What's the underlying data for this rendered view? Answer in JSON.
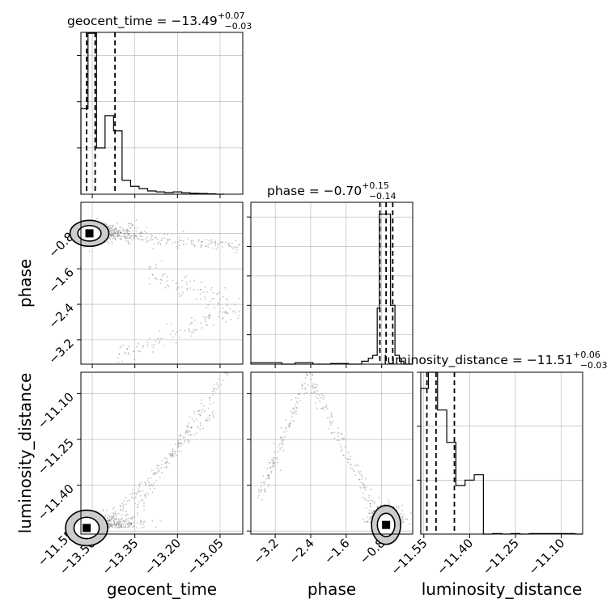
{
  "chart_data": [
    {
      "type": "histogram",
      "panel": "geocent_time-marginal",
      "title": {
        "base": "geocent_time = −13.49",
        "sup": "+0.07",
        "sub": "−0.03"
      },
      "xlim": [
        -13.54,
        -12.97
      ],
      "ylim": [
        0,
        3500
      ],
      "y_ticks": [
        1000,
        2000,
        3000
      ],
      "x_ticks": [
        -13.5,
        -13.35,
        -13.2,
        -13.05
      ],
      "quantile_lines": [
        -13.52,
        -13.49,
        -13.42
      ],
      "bin_edges": [
        -13.54,
        -13.515,
        -13.485,
        -13.455,
        -13.425,
        -13.395,
        -13.365,
        -13.335,
        -13.305,
        -13.275,
        -13.245,
        -13.215,
        -13.185,
        -13.155,
        -13.125,
        -13.095,
        -13.065,
        -13.035
      ],
      "counts": [
        1850,
        3480,
        1000,
        1700,
        1370,
        300,
        170,
        120,
        70,
        50,
        35,
        50,
        30,
        20,
        15,
        10,
        0
      ]
    },
    {
      "type": "histogram",
      "panel": "phase-marginal",
      "title": {
        "base": "phase = −0.70",
        "sup": "+0.15",
        "sub": "−0.14"
      },
      "xlim": [
        -3.75,
        -0.1
      ],
      "ylim": [
        0,
        5500
      ],
      "y_ticks": [
        1000,
        2000,
        3000,
        4000,
        5000
      ],
      "x_ticks": [
        -3.2,
        -2.4,
        -1.6,
        -0.8
      ],
      "quantile_lines": [
        -0.84,
        -0.7,
        -0.55
      ],
      "bin_edges": [
        -3.75,
        -3.05,
        -2.75,
        -2.35,
        -1.95,
        -1.55,
        -1.25,
        -1.1,
        -1.0,
        -0.9,
        -0.85,
        -0.7,
        -0.6,
        -0.5,
        -0.4,
        -0.3,
        -0.1
      ],
      "counts": [
        50,
        0,
        50,
        0,
        20,
        0,
        100,
        200,
        300,
        1900,
        5100,
        5100,
        2000,
        300,
        100,
        0
      ]
    },
    {
      "type": "histogram",
      "panel": "luminosity_distance-marginal",
      "title": {
        "base": "luminosity_distance = −11.51",
        "sup": "+0.06",
        "sub": "−0.03"
      },
      "xlim": [
        -11.56,
        -11.03
      ],
      "ylim": [
        0,
        3000
      ],
      "y_ticks": [
        1000,
        2000,
        3000
      ],
      "x_ticks": [
        -11.55,
        -11.4,
        -11.25,
        -11.1
      ],
      "quantile_lines": [
        -11.54,
        -11.51,
        -11.45
      ],
      "bin_edges": [
        -11.56,
        -11.535,
        -11.505,
        -11.475,
        -11.445,
        -11.415,
        -11.385,
        -11.355,
        -11.325,
        -11.295,
        -11.265,
        -11.235,
        -11.205,
        -11.175,
        -11.145,
        -11.115,
        -11.085,
        -11.055,
        -11.03
      ],
      "counts": [
        2700,
        3000,
        2300,
        1700,
        900,
        1000,
        1100,
        0,
        10,
        0,
        10,
        0,
        10,
        10,
        10,
        10,
        10,
        0
      ]
    },
    {
      "type": "scatter",
      "panel": "phase-vs-geocent_time",
      "xlim": [
        -13.54,
        -12.97
      ],
      "ylim": [
        -3.75,
        -0.1
      ],
      "x_ticks": [
        -13.5,
        -13.35,
        -13.2,
        -13.05
      ],
      "y_ticks": [
        -0.8,
        -1.6,
        -2.4,
        -3.2
      ],
      "ylabel": "phase",
      "contour_centre": [
        -13.51,
        -0.8
      ]
    },
    {
      "type": "scatter",
      "panel": "luminosity_distance-vs-geocent_time",
      "xlim": [
        -13.54,
        -12.97
      ],
      "ylim": [
        -11.56,
        -11.03
      ],
      "x_ticks": [
        -13.5,
        -13.35,
        -13.2,
        -13.05
      ],
      "y_ticks": [
        -11.1,
        -11.25,
        -11.4,
        -11.55
      ],
      "xlabel": "geocent_time",
      "ylabel": "luminosity_distance",
      "contour_centre": [
        -13.52,
        -11.54
      ]
    },
    {
      "type": "scatter",
      "panel": "luminosity_distance-vs-phase",
      "xlim": [
        -3.75,
        -0.1
      ],
      "ylim": [
        -11.56,
        -11.03
      ],
      "x_ticks": [
        -3.2,
        -2.4,
        -1.6,
        -0.8
      ],
      "y_ticks": [
        -11.1,
        -11.25,
        -11.4,
        -11.55
      ],
      "xlabel": "phase",
      "contour_centre": [
        -0.7,
        -11.53
      ]
    },
    {
      "type": "histogram",
      "panel": "xlabel-only",
      "xlabel": "luminosity_distance"
    }
  ],
  "tick_labels": {
    "geocent_time": [
      "−13.50",
      "−13.35",
      "−13.20",
      "−13.05"
    ],
    "phase": [
      "−3.2",
      "−2.4",
      "−1.6",
      "−0.8"
    ],
    "phase_y": [
      "−0.8",
      "−1.6",
      "−2.4",
      "−3.2"
    ],
    "luminosity_distance": [
      "−11.55",
      "−11.40",
      "−11.25",
      "−11.10"
    ],
    "luminosity_distance_y": [
      "−11.10",
      "−11.25",
      "−11.40",
      "−11.55"
    ]
  },
  "colors": {
    "line": "#000000",
    "grid": "#b0b0b0",
    "samples": "#555555",
    "contour_fill": "#cccccc"
  }
}
